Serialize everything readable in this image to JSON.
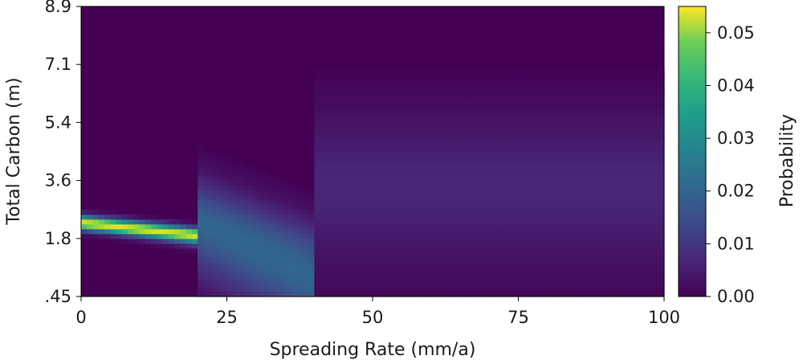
{
  "chart_data": {
    "type": "heatmap",
    "title": "",
    "xlabel": "Spreading Rate (mm/a)",
    "ylabel": "Total Carbon (m)",
    "xlim": [
      0,
      100
    ],
    "ylim": [
      0.45,
      8.9
    ],
    "x_ticks": [
      {
        "value": 0,
        "label": "0"
      },
      {
        "value": 25,
        "label": "25"
      },
      {
        "value": 50,
        "label": "50"
      },
      {
        "value": 75,
        "label": "75"
      },
      {
        "value": 100,
        "label": "100"
      }
    ],
    "y_ticks": [
      {
        "value": 0.45,
        "label": ".45"
      },
      {
        "value": 1.8,
        "label": "1.8"
      },
      {
        "value": 3.6,
        "label": "3.6"
      },
      {
        "value": 5.4,
        "label": "5.4"
      },
      {
        "value": 7.1,
        "label": "7.1"
      },
      {
        "value": 8.9,
        "label": "8.9"
      }
    ],
    "colormap": "viridis",
    "colorbar": {
      "label": "Probability",
      "range": [
        0,
        0.055
      ],
      "ticks": [
        {
          "value": 0.0,
          "label": "0.00"
        },
        {
          "value": 0.01,
          "label": "0.01"
        },
        {
          "value": 0.02,
          "label": "0.02"
        },
        {
          "value": 0.03,
          "label": "0.03"
        },
        {
          "value": 0.04,
          "label": "0.04"
        },
        {
          "value": 0.05,
          "label": "0.05"
        }
      ]
    },
    "regions": [
      {
        "x_range": [
          0,
          20
        ],
        "ridge_start": [
          0,
          2.3
        ],
        "ridge_end": [
          20,
          1.9
        ],
        "peak_probability": 0.052,
        "spread": 0.15
      },
      {
        "x_range": [
          20,
          40
        ],
        "ridge_start": [
          20,
          2.3
        ],
        "ridge_end": [
          40,
          0.85
        ],
        "peak_probability": 0.018,
        "spread": 0.9
      },
      {
        "x_range": [
          40,
          100
        ],
        "center": 3.4,
        "peak_probability": 0.006,
        "spread": 1.6
      }
    ]
  }
}
